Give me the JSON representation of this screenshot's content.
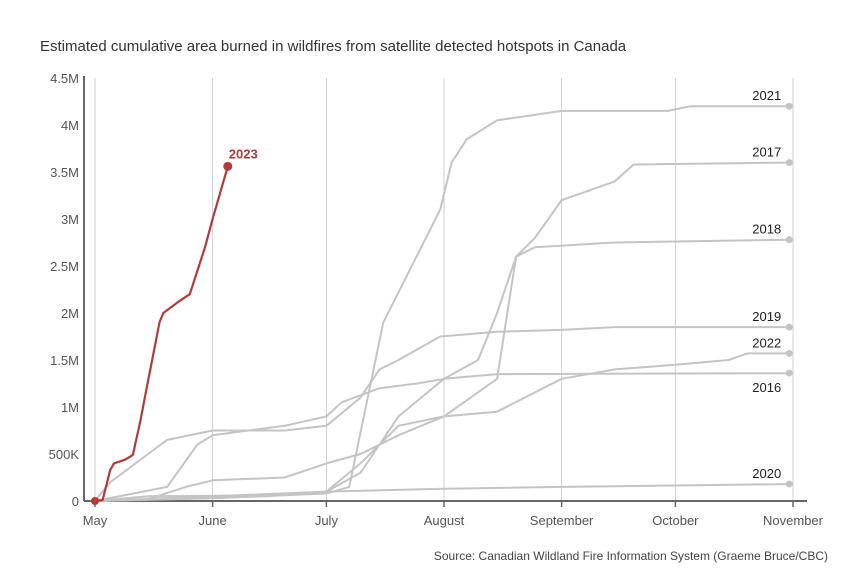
{
  "chart_data": {
    "type": "line",
    "title": "Estimated cumulative area burned in wildfires from satellite detected hotspots in Canada",
    "source": "Source: Canadian Wildland Fire Information System (Graeme Bruce/CBC)",
    "xlabel": "",
    "ylabel": "",
    "x_ticks": [
      "May",
      "June",
      "July",
      "August",
      "September",
      "October",
      "November"
    ],
    "y_ticks": [
      "0",
      "500K",
      "1M",
      "1.5M",
      "2M",
      "2.5M",
      "3M",
      "3.5M",
      "4M",
      "4.5M"
    ],
    "ylim": [
      0,
      4500000
    ],
    "xlim": [
      "05-01",
      "11-01"
    ],
    "grid": "vertical",
    "colors": {
      "highlight": "#b33a3a",
      "other": "#c4c4c4"
    },
    "series": [
      {
        "name": "2021",
        "points": [
          [
            "05-01",
            0
          ],
          [
            "06-01",
            30000
          ],
          [
            "07-01",
            80000
          ],
          [
            "07-07",
            150000
          ],
          [
            "07-16",
            1900000
          ],
          [
            "07-21",
            2300000
          ],
          [
            "07-31",
            3100000
          ],
          [
            "08-03",
            3600000
          ],
          [
            "08-07",
            3850000
          ],
          [
            "08-15",
            4050000
          ],
          [
            "09-01",
            4150000
          ],
          [
            "09-29",
            4150000
          ],
          [
            "10-05",
            4200000
          ],
          [
            "10-31",
            4200000
          ]
        ]
      },
      {
        "name": "2017",
        "points": [
          [
            "05-01",
            0
          ],
          [
            "06-01",
            50000
          ],
          [
            "07-01",
            100000
          ],
          [
            "07-10",
            400000
          ],
          [
            "07-20",
            800000
          ],
          [
            "08-01",
            900000
          ],
          [
            "08-15",
            1300000
          ],
          [
            "08-20",
            2600000
          ],
          [
            "08-25",
            2800000
          ],
          [
            "09-01",
            3200000
          ],
          [
            "09-15",
            3400000
          ],
          [
            "09-20",
            3580000
          ],
          [
            "10-31",
            3600000
          ]
        ]
      },
      {
        "name": "2018",
        "points": [
          [
            "05-01",
            0
          ],
          [
            "06-15",
            50000
          ],
          [
            "07-01",
            100000
          ],
          [
            "07-10",
            300000
          ],
          [
            "07-20",
            900000
          ],
          [
            "08-01",
            1300000
          ],
          [
            "08-10",
            1500000
          ],
          [
            "08-15",
            2000000
          ],
          [
            "08-20",
            2600000
          ],
          [
            "08-25",
            2700000
          ],
          [
            "09-15",
            2750000
          ],
          [
            "10-31",
            2780000
          ]
        ]
      },
      {
        "name": "2019",
        "points": [
          [
            "05-01",
            0
          ],
          [
            "05-05",
            200000
          ],
          [
            "05-15",
            500000
          ],
          [
            "05-20",
            650000
          ],
          [
            "06-01",
            750000
          ],
          [
            "06-20",
            750000
          ],
          [
            "07-01",
            800000
          ],
          [
            "07-10",
            1100000
          ],
          [
            "07-15",
            1400000
          ],
          [
            "07-20",
            1500000
          ],
          [
            "07-31",
            1750000
          ],
          [
            "08-15",
            1800000
          ],
          [
            "09-01",
            1820000
          ],
          [
            "09-15",
            1850000
          ],
          [
            "10-31",
            1850000
          ]
        ]
      },
      {
        "name": "2022",
        "points": [
          [
            "05-01",
            0
          ],
          [
            "05-15",
            20000
          ],
          [
            "05-25",
            150000
          ],
          [
            "06-01",
            220000
          ],
          [
            "06-20",
            250000
          ],
          [
            "07-01",
            400000
          ],
          [
            "07-10",
            500000
          ],
          [
            "07-20",
            700000
          ],
          [
            "08-01",
            900000
          ],
          [
            "08-15",
            950000
          ],
          [
            "09-01",
            1300000
          ],
          [
            "09-15",
            1400000
          ],
          [
            "10-01",
            1450000
          ],
          [
            "10-15",
            1500000
          ],
          [
            "10-20",
            1570000
          ],
          [
            "10-31",
            1570000
          ]
        ]
      },
      {
        "name": "2016",
        "points": [
          [
            "05-01",
            0
          ],
          [
            "05-20",
            150000
          ],
          [
            "05-28",
            600000
          ],
          [
            "06-01",
            700000
          ],
          [
            "06-20",
            800000
          ],
          [
            "07-01",
            900000
          ],
          [
            "07-05",
            1050000
          ],
          [
            "07-15",
            1200000
          ],
          [
            "07-25",
            1250000
          ],
          [
            "08-01",
            1300000
          ],
          [
            "08-15",
            1350000
          ],
          [
            "10-31",
            1360000
          ]
        ]
      },
      {
        "name": "2020",
        "points": [
          [
            "05-01",
            0
          ],
          [
            "05-15",
            50000
          ],
          [
            "06-15",
            60000
          ],
          [
            "07-01",
            100000
          ],
          [
            "08-01",
            130000
          ],
          [
            "09-01",
            150000
          ],
          [
            "10-31",
            180000
          ]
        ]
      },
      {
        "name": "2023",
        "highlight": true,
        "points": [
          [
            "05-01",
            0
          ],
          [
            "05-03",
            10000
          ],
          [
            "05-05",
            330000
          ],
          [
            "05-06",
            400000
          ],
          [
            "05-09",
            440000
          ],
          [
            "05-11",
            490000
          ],
          [
            "05-13",
            860000
          ],
          [
            "05-15",
            1280000
          ],
          [
            "05-18",
            1900000
          ],
          [
            "05-19",
            2000000
          ],
          [
            "05-23",
            2120000
          ],
          [
            "05-26",
            2200000
          ],
          [
            "05-30",
            2700000
          ],
          [
            "06-01",
            3000000
          ],
          [
            "06-05",
            3560000
          ]
        ]
      }
    ]
  }
}
